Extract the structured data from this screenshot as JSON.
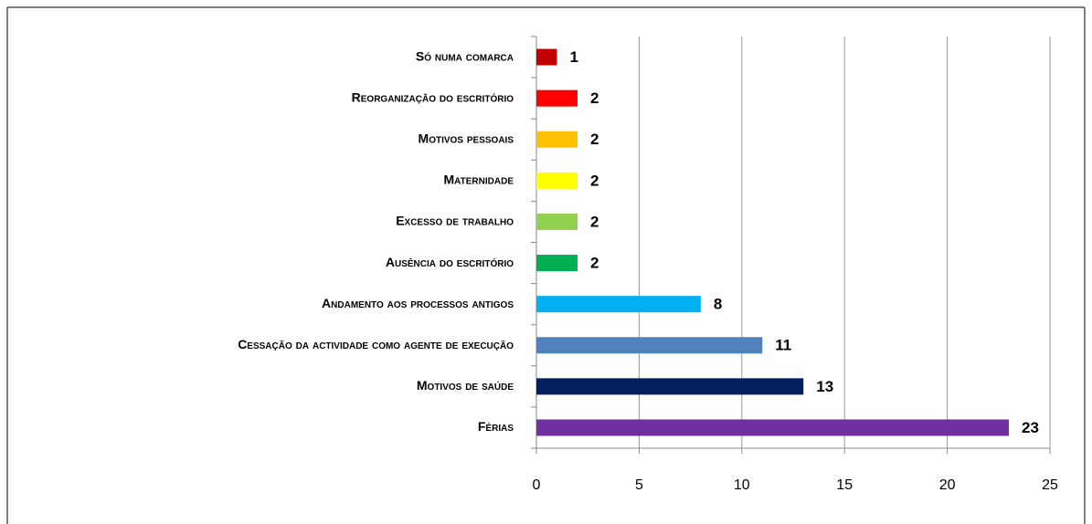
{
  "chart_data": {
    "type": "bar",
    "orientation": "horizontal",
    "categories": [
      "Só numa comarca",
      "Reorganização do escritório",
      "Motivos pessoais",
      "Maternidade",
      "Excesso de trabalho",
      "Ausência do escritório",
      "Andamento aos processos antigos",
      "Cessação da actividade como agente de execução",
      "Motivos de saúde",
      "Férias"
    ],
    "values": [
      1,
      2,
      2,
      2,
      2,
      2,
      8,
      11,
      13,
      23
    ],
    "colors": [
      "#c00000",
      "#ff0000",
      "#ffc000",
      "#ffff00",
      "#92d050",
      "#00b050",
      "#00b0f0",
      "#4f81bd",
      "#002060",
      "#7030a0"
    ],
    "xlim": [
      0,
      25
    ],
    "xticks": [
      0,
      5,
      10,
      15,
      20,
      25
    ],
    "grid": true
  }
}
